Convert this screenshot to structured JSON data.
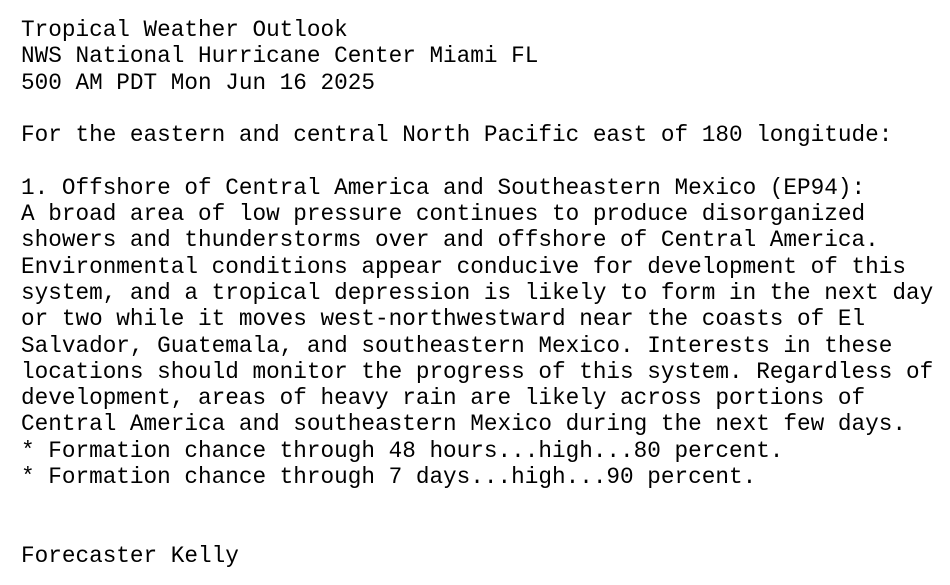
{
  "header": {
    "title": "Tropical Weather Outlook",
    "office": "NWS National Hurricane Center Miami FL",
    "issued": "500 AM PDT Mon Jun 16 2025"
  },
  "intro": "For the eastern and central North Pacific east of 180 longitude:",
  "item": {
    "heading": "1. Offshore of Central America and Southeastern Mexico (EP94):",
    "body_lines": [
      "A broad area of low pressure continues to produce disorganized",
      "showers and thunderstorms over and offshore of Central America.",
      "Environmental conditions appear conducive for development of this",
      "system, and a tropical depression is likely to form in the next day",
      "or two while it moves west-northwestward near the coasts of El",
      "Salvador, Guatemala, and southeastern Mexico. Interests in these",
      "locations should monitor the progress of this system. Regardless of",
      "development, areas of heavy rain are likely across portions of",
      "Central America and southeastern Mexico during the next few days."
    ],
    "chance_48h": "* Formation chance through 48 hours...high...80 percent.",
    "chance_7d": "* Formation chance through 7 days...high...90 percent."
  },
  "forecaster": "Forecaster Kelly"
}
